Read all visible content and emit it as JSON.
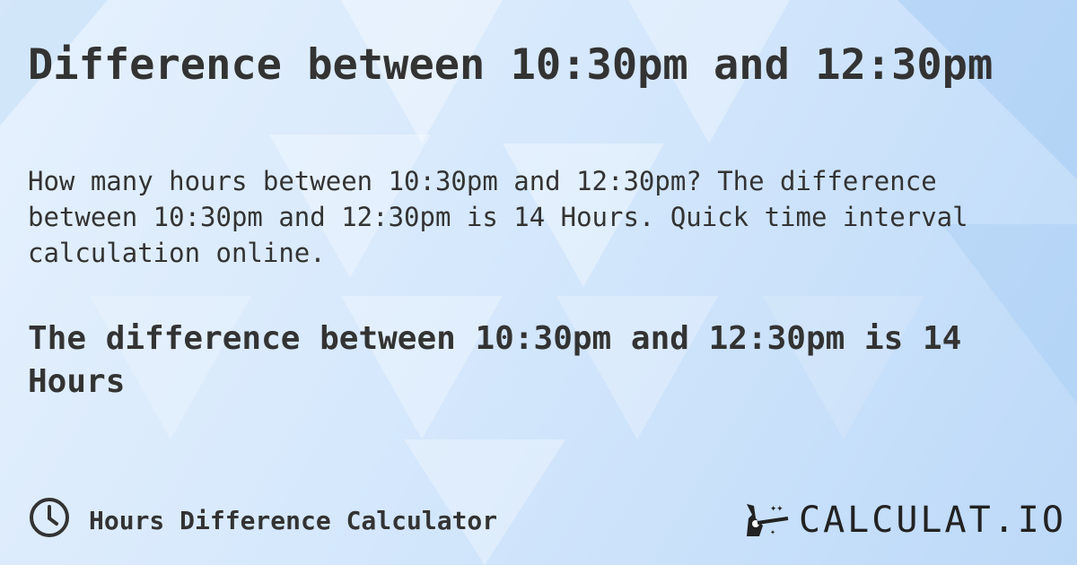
{
  "title": "Difference between 10:30pm and 12:30pm",
  "description": "How many hours between 10:30pm and 12:30pm? The difference between 10:30pm and 12:30pm is 14 Hours. Quick time interval calculation online.",
  "answer": "The difference between 10:30pm and 12:30pm is 14 Hours",
  "footer": {
    "calculator_label": "Hours Difference Calculator",
    "icon": "clock-icon"
  },
  "logo": {
    "text": "CALCULAT.IO"
  },
  "colors": {
    "text": "#333333",
    "background": "#d7e9fc"
  }
}
